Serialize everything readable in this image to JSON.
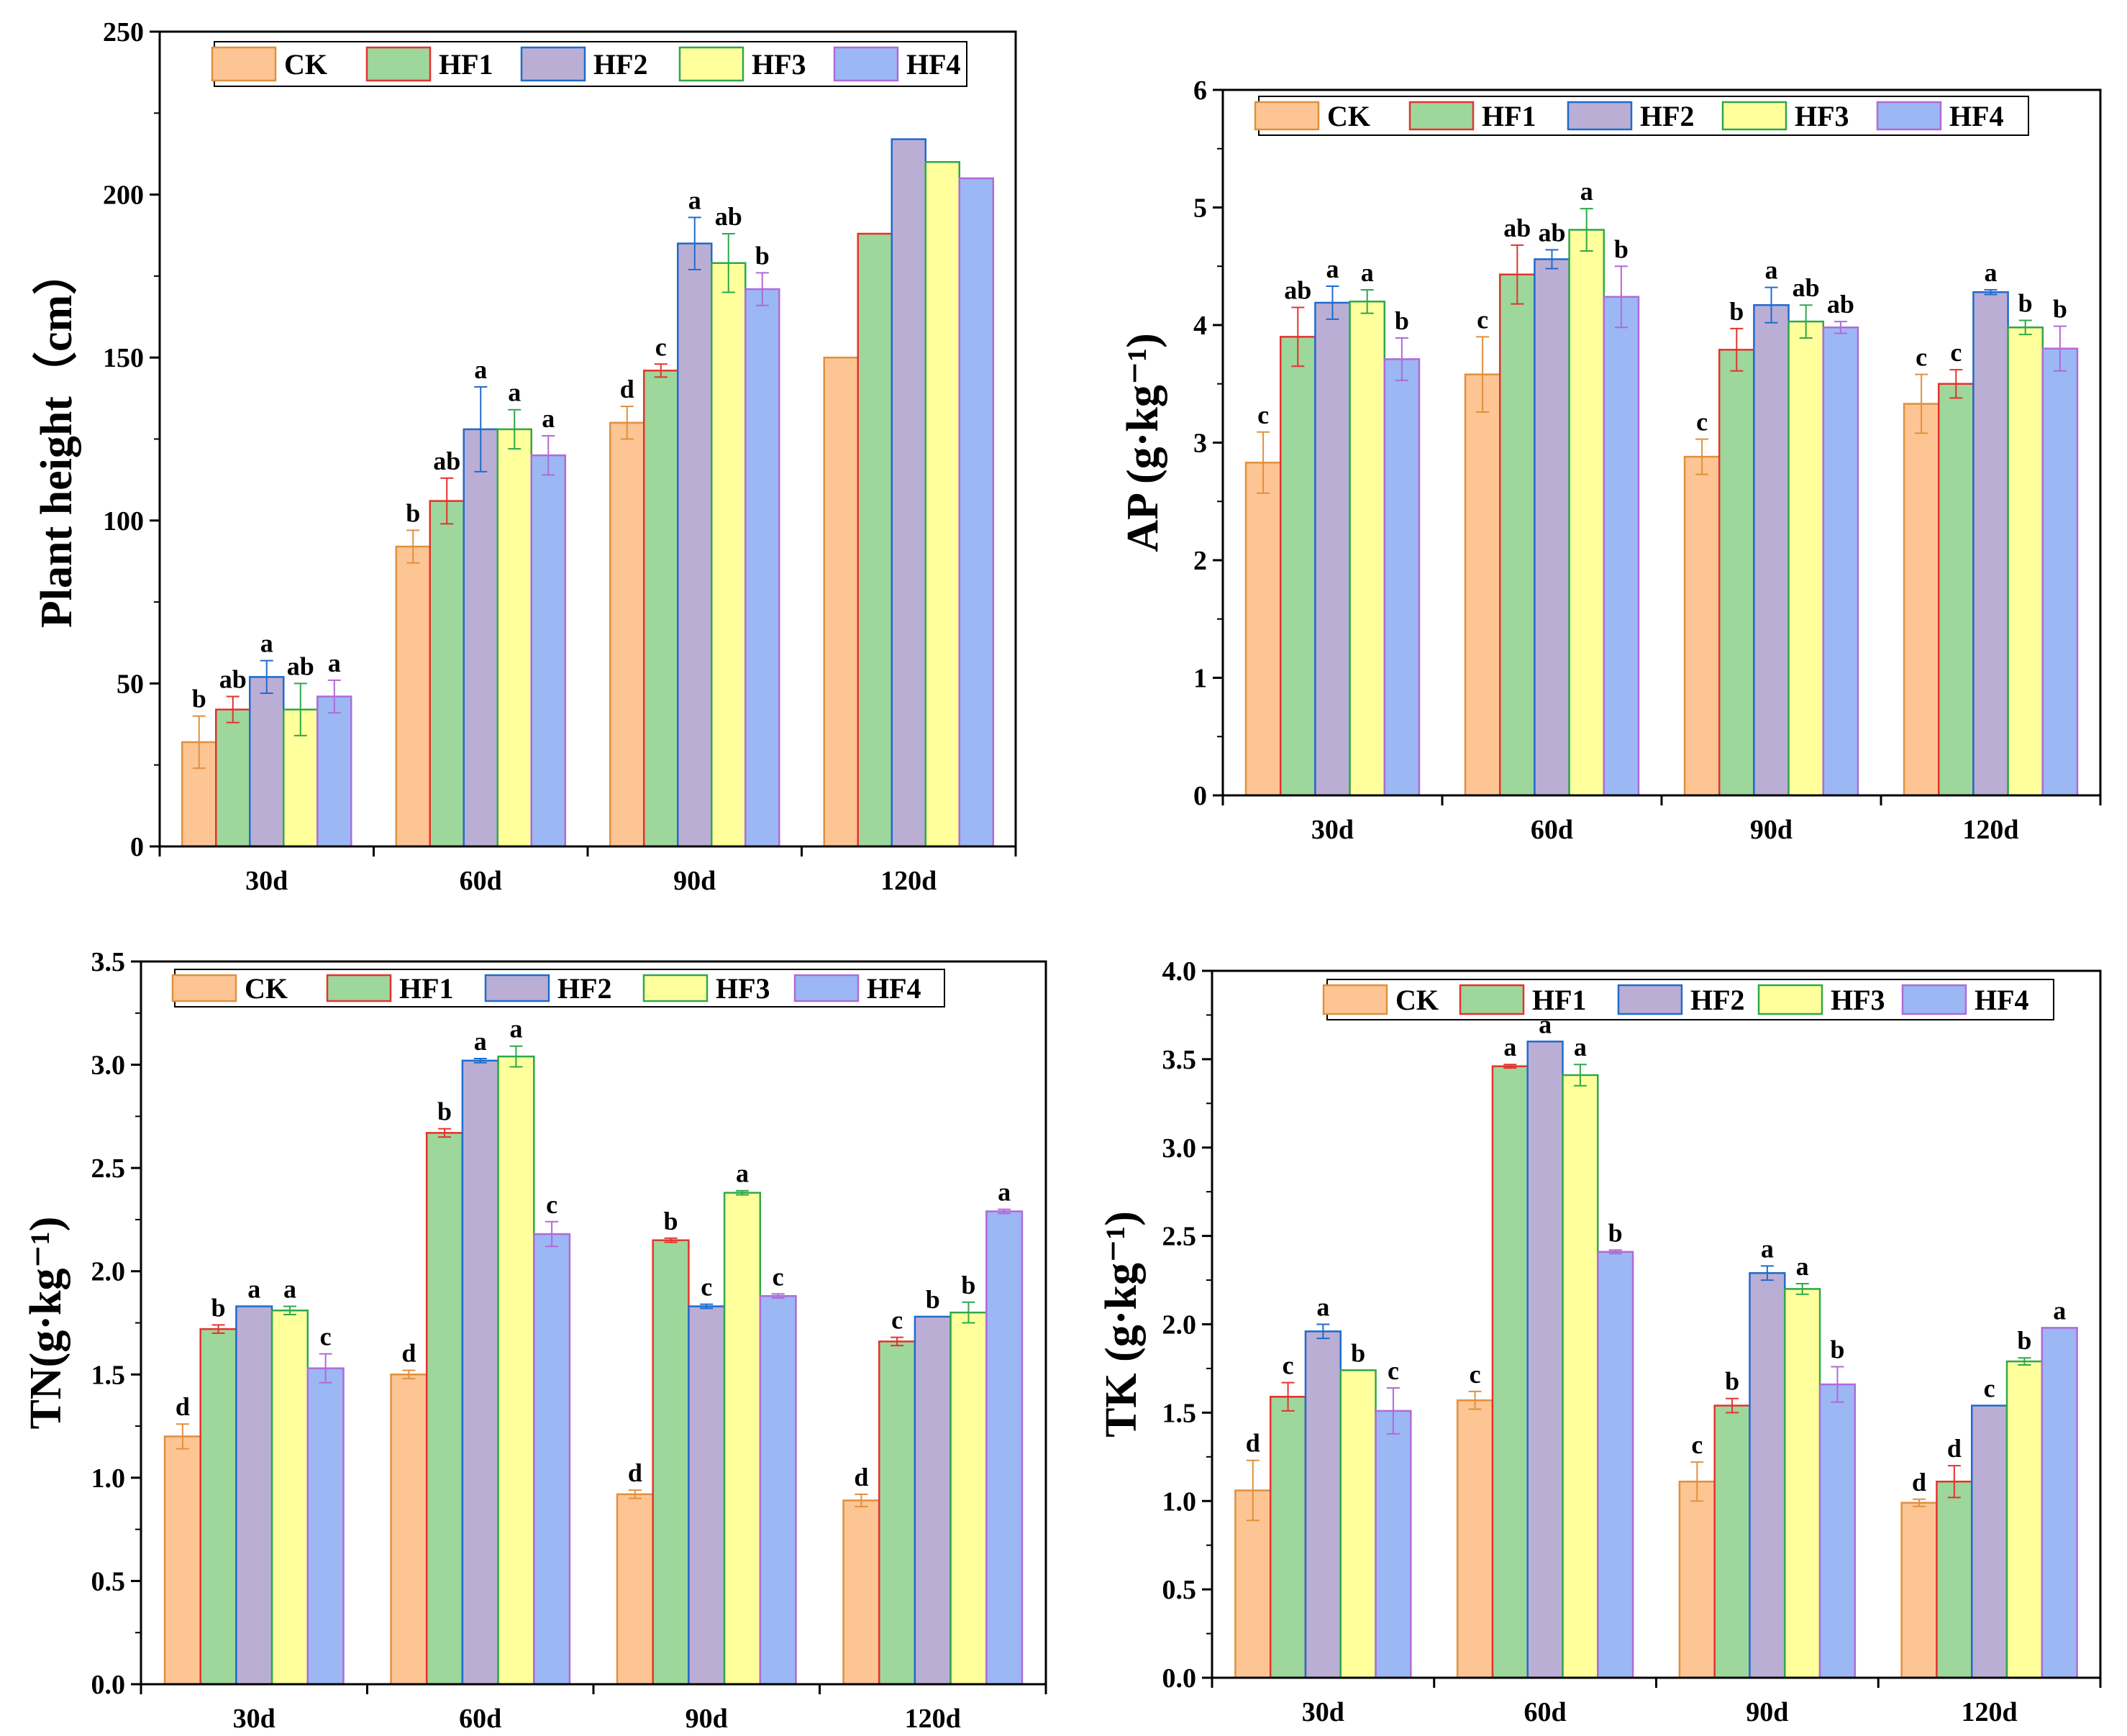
{
  "chart_data": [
    {
      "type": "bar",
      "title": "",
      "ylabel": "Plant height（cm）",
      "xlabel": "",
      "categories": [
        "30d",
        "60d",
        "90d",
        "120d"
      ],
      "ylim": [
        0,
        250
      ],
      "yticks": [
        "0",
        "50",
        "100",
        "150",
        "200",
        "250"
      ],
      "legend": [
        "CK",
        "HF1",
        "HF2",
        "HF3",
        "HF4"
      ],
      "legend_position": "top",
      "series": [
        {
          "name": "CK",
          "values": [
            32,
            92,
            130,
            150
          ],
          "errors": [
            8,
            5,
            5,
            0
          ],
          "labels": [
            "b",
            "b",
            "d",
            ""
          ]
        },
        {
          "name": "HF1",
          "values": [
            42,
            106,
            146,
            188
          ],
          "errors": [
            4,
            7,
            2,
            0
          ],
          "labels": [
            "ab",
            "ab",
            "c",
            ""
          ]
        },
        {
          "name": "HF2",
          "values": [
            52,
            128,
            185,
            217
          ],
          "errors": [
            5,
            13,
            8,
            0
          ],
          "labels": [
            "a",
            "a",
            "a",
            ""
          ]
        },
        {
          "name": "HF3",
          "values": [
            42,
            128,
            179,
            210
          ],
          "errors": [
            8,
            6,
            9,
            0
          ],
          "labels": [
            "ab",
            "a",
            "ab",
            ""
          ]
        },
        {
          "name": "HF4",
          "values": [
            46,
            120,
            171,
            205
          ],
          "errors": [
            5,
            6,
            5,
            0
          ],
          "labels": [
            "a",
            "a",
            "b",
            ""
          ]
        }
      ]
    },
    {
      "type": "bar",
      "title": "",
      "ylabel": "AP (g·kg⁻¹)",
      "xlabel": "",
      "categories": [
        "30d",
        "60d",
        "90d",
        "120d"
      ],
      "ylim": [
        0,
        6
      ],
      "yticks": [
        "0",
        "1",
        "2",
        "3",
        "4",
        "5",
        "6"
      ],
      "legend": [
        "CK",
        "HF1",
        "HF2",
        "HF3",
        "HF4"
      ],
      "legend_position": "top",
      "series": [
        {
          "name": "CK",
          "values": [
            2.83,
            3.58,
            2.88,
            3.33
          ],
          "errors": [
            0.26,
            0.32,
            0.15,
            0.25
          ],
          "labels": [
            "c",
            "c",
            "c",
            "c"
          ]
        },
        {
          "name": "HF1",
          "values": [
            3.9,
            4.43,
            3.79,
            3.5
          ],
          "errors": [
            0.25,
            0.25,
            0.18,
            0.12
          ],
          "labels": [
            "ab",
            "ab",
            "b",
            "c"
          ]
        },
        {
          "name": "HF2",
          "values": [
            4.19,
            4.56,
            4.17,
            4.28
          ],
          "errors": [
            0.14,
            0.08,
            0.15,
            0.02
          ],
          "labels": [
            "a",
            "ab",
            "a",
            "a"
          ]
        },
        {
          "name": "HF3",
          "values": [
            4.2,
            4.81,
            4.03,
            3.98
          ],
          "errors": [
            0.1,
            0.18,
            0.14,
            0.06
          ],
          "labels": [
            "a",
            "a",
            "ab",
            "b"
          ]
        },
        {
          "name": "HF4",
          "values": [
            3.71,
            4.24,
            3.98,
            3.8
          ],
          "errors": [
            0.18,
            0.26,
            0.05,
            0.19
          ],
          "labels": [
            "b",
            "b",
            "ab",
            "b"
          ]
        }
      ]
    },
    {
      "type": "bar",
      "title": "",
      "ylabel": "TN(g·kg⁻¹)",
      "xlabel": "",
      "categories": [
        "30d",
        "60d",
        "90d",
        "120d"
      ],
      "ylim": [
        0,
        3.5
      ],
      "yticks": [
        "0.0",
        "0.5",
        "1.0",
        "1.5",
        "2.0",
        "2.5",
        "3.0",
        "3.5"
      ],
      "legend": [
        "CK",
        "HF1",
        "HF2",
        "HF3",
        "HF4"
      ],
      "legend_position": "top",
      "series": [
        {
          "name": "CK",
          "values": [
            1.2,
            1.5,
            0.92,
            0.89
          ],
          "errors": [
            0.06,
            0.02,
            0.02,
            0.03
          ],
          "labels": [
            "d",
            "d",
            "d",
            "d"
          ]
        },
        {
          "name": "HF1",
          "values": [
            1.72,
            2.67,
            2.15,
            1.66
          ],
          "errors": [
            0.02,
            0.02,
            0.01,
            0.02
          ],
          "labels": [
            "b",
            "b",
            "b",
            "c"
          ]
        },
        {
          "name": "HF2",
          "values": [
            1.83,
            3.02,
            1.83,
            1.78
          ],
          "errors": [
            0.0,
            0.01,
            0.01,
            0.0
          ],
          "labels": [
            "a",
            "a",
            "c",
            "b"
          ]
        },
        {
          "name": "HF3",
          "values": [
            1.81,
            3.04,
            2.38,
            1.8
          ],
          "errors": [
            0.02,
            0.05,
            0.01,
            0.05
          ],
          "labels": [
            "a",
            "a",
            "a",
            "b"
          ]
        },
        {
          "name": "HF4",
          "values": [
            1.53,
            2.18,
            1.88,
            2.29
          ],
          "errors": [
            0.07,
            0.06,
            0.01,
            0.01
          ],
          "labels": [
            "c",
            "c",
            "c",
            "a"
          ]
        }
      ]
    },
    {
      "type": "bar",
      "title": "",
      "ylabel": "TK (g·kg⁻¹)",
      "xlabel": "",
      "categories": [
        "30d",
        "60d",
        "90d",
        "120d"
      ],
      "ylim": [
        0,
        4.0
      ],
      "yticks": [
        "0.0",
        "0.5",
        "1.0",
        "1.5",
        "2.0",
        "2.5",
        "3.0",
        "3.5",
        "4.0"
      ],
      "legend": [
        "CK",
        "HF1",
        "HF2",
        "HF3",
        "HF4"
      ],
      "legend_position": "top",
      "series": [
        {
          "name": "CK",
          "values": [
            1.06,
            1.57,
            1.11,
            0.99
          ],
          "errors": [
            0.17,
            0.05,
            0.11,
            0.02
          ],
          "labels": [
            "d",
            "c",
            "c",
            "d"
          ]
        },
        {
          "name": "HF1",
          "values": [
            1.59,
            3.46,
            1.54,
            1.11
          ],
          "errors": [
            0.08,
            0.01,
            0.04,
            0.09
          ],
          "labels": [
            "c",
            "a",
            "b",
            "d"
          ]
        },
        {
          "name": "HF2",
          "values": [
            1.96,
            3.6,
            2.29,
            1.54
          ],
          "errors": [
            0.04,
            0.0,
            0.04,
            0.0
          ],
          "labels": [
            "a",
            "a",
            "a",
            "c"
          ]
        },
        {
          "name": "HF3",
          "values": [
            1.74,
            3.41,
            2.2,
            1.79
          ],
          "errors": [
            0.0,
            0.06,
            0.03,
            0.02
          ],
          "labels": [
            "b",
            "a",
            "a",
            "b"
          ]
        },
        {
          "name": "HF4",
          "values": [
            1.51,
            2.41,
            1.66,
            1.98
          ],
          "errors": [
            0.13,
            0.01,
            0.1,
            0.0
          ],
          "labels": [
            "c",
            "b",
            "b",
            "a"
          ]
        }
      ]
    }
  ],
  "colors": {
    "fills": [
      "#FDC593",
      "#9DD79B",
      "#BBAED4",
      "#FFFF9C",
      "#9BB7F4"
    ],
    "borders": [
      "#E0903E",
      "#E5322D",
      "#1F6BCE",
      "#2EA84A",
      "#B06AD8"
    ],
    "axis": "#000000"
  }
}
